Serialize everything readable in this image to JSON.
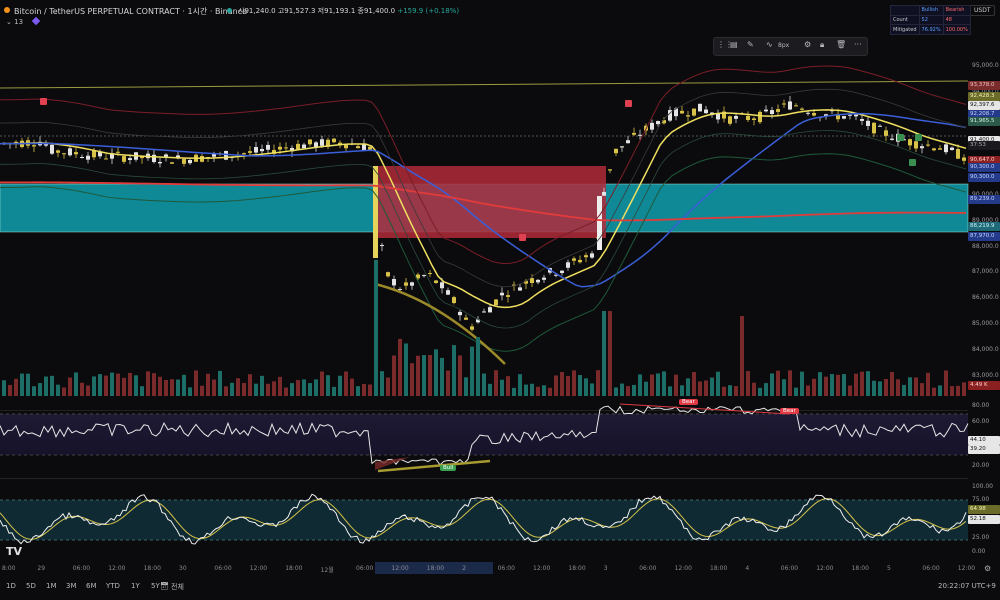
{
  "header": {
    "symbol_title": "Bitcoin / TetherUS PERPETUAL CONTRACT · 1시간 · Binance",
    "ohlc": "시91,240.0  고91,527.3  저91,193.1  종91,400.0",
    "change": "+159.9 (+0.18%)",
    "indicator_count": "13",
    "currency": "USDT"
  },
  "toolbar": {
    "size_label": "8px",
    "more_label": "···"
  },
  "ob_table": {
    "header_bullish": "Bullish",
    "header_bearish": "Bearish",
    "row1_label": "Count",
    "row1_bull": "52",
    "row1_bear": "48",
    "row2_label": "Mitigated",
    "row2_bull": "76.92%",
    "row2_bear": "100.00%"
  },
  "price_axis": {
    "ticks": [
      "95,000.0",
      "94,000.0",
      "93,000.0",
      "92,000.0",
      "91,000.0",
      "90,000.0",
      "89,000.0",
      "88,000.0",
      "87,000.0",
      "86,000.0",
      "85,000.0",
      "84,000.0",
      "83,000.0"
    ],
    "tags": [
      {
        "text": "93,378.0",
        "bg": "#7a2b2b",
        "color": "#f0c0c0"
      },
      {
        "text": "92,428.3",
        "bg": "#6b6b2a",
        "color": "#f5f5b0"
      },
      {
        "text": "92,397.6",
        "bg": "#e6e6e6",
        "color": "#111111"
      },
      {
        "text": "92,208.7",
        "bg": "#243a8a",
        "color": "#c8d4ff"
      },
      {
        "text": "91,965.5",
        "bg": "#2b5a4a",
        "color": "#d0f0e0"
      },
      {
        "text": "91,400.0",
        "bg": "#e6e6e6",
        "color": "#111111"
      },
      {
        "text": "37:53",
        "bg": "#1a1a1e",
        "color": "#b0b0b0"
      },
      {
        "text": "90,647.0",
        "bg": "#8a2020",
        "color": "#ffd0d0"
      },
      {
        "text": "90,300.0",
        "bg": "#243a8a",
        "color": "#c8d4ff"
      },
      {
        "text": "90,300.0",
        "bg": "#243a8a",
        "color": "#c8d4ff"
      },
      {
        "text": "89,239.0",
        "bg": "#243a8a",
        "color": "#c8d4ff"
      },
      {
        "text": "88,219.9",
        "bg": "#1e6a78",
        "color": "#d0f4f8"
      },
      {
        "text": "87,970.0",
        "bg": "#243a8a",
        "color": "#c8d4ff"
      },
      {
        "text": "4.49 K",
        "bg": "#8a2020",
        "color": "#ffd0d0"
      }
    ]
  },
  "rsi_axis": {
    "ticks": [
      "80.00",
      "60.00",
      "20.00"
    ],
    "tags": [
      {
        "text": "44.10",
        "bg": "#e6e6e6",
        "color": "#111111"
      },
      {
        "text": "39.20",
        "bg": "#e6e6e6",
        "color": "#111111"
      }
    ]
  },
  "stoch_axis": {
    "ticks": [
      "100.00",
      "75.00",
      "25.00",
      "0.00"
    ],
    "tags": [
      {
        "text": "64.98",
        "bg": "#6b6b2a",
        "color": "#f5f5b0"
      },
      {
        "text": "52.18",
        "bg": "#e6e6e6",
        "color": "#111111"
      }
    ]
  },
  "labels": {
    "bear1": "Bear",
    "bear2": "Bear",
    "bull": "Bull"
  },
  "time_axis": [
    "8:00",
    "29",
    "06:00",
    "12:00",
    "18:00",
    "30",
    "06:00",
    "12:00",
    "18:00",
    "12월",
    "06:00",
    "12:00",
    "18:00",
    "2",
    "06:00",
    "12:00",
    "18:00",
    "3",
    "06:00",
    "12:00",
    "18:00",
    "4",
    "06:00",
    "12:00",
    "18:00",
    "5",
    "06:00",
    "12:00"
  ],
  "bottom_bar": {
    "ranges": [
      "1D",
      "5D",
      "1M",
      "3M",
      "6M",
      "YTD",
      "1Y",
      "5Y",
      "전체"
    ],
    "clock": "20:22:07 UTC+9"
  },
  "colors": {
    "bull": "#26a69a",
    "bear": "#ef5350",
    "ma_yellow": "#f0e060",
    "ma_blue": "#3a5fd8",
    "ma_red": "#e23b3b",
    "teal_zone": "#12a0b0",
    "red_zone": "#b02a3a"
  }
}
